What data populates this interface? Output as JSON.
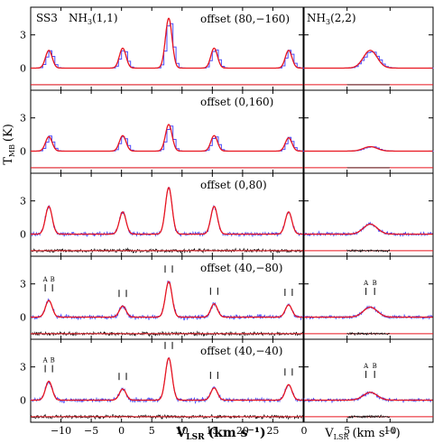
{
  "figure": {
    "source": "SS3",
    "left_transition": "NH",
    "left_transition_sub": "3",
    "left_transition_tail": "(1,1)",
    "right_transition": "NH",
    "right_transition_sub": "3",
    "right_transition_tail": "(2,2)",
    "ylabel": "T",
    "ylabel_sub": "MB",
    "ylabel_unit": "(K)",
    "xlabel_left": "V",
    "xlabel_left_sub": "LSR",
    "xlabel_left_unit": "(km s⁻¹)",
    "xlabel_right": "V",
    "xlabel_right_sub": "LSR",
    "xlabel_right_unit": "(km s⁻¹)",
    "colors": {
      "observed": "#4b4bff",
      "model": "#e8141e",
      "residual": "#000000",
      "frame": "#000000"
    }
  },
  "chart_data": {
    "type": "line",
    "panels": [
      {
        "offset_label": "offset (80,−160)",
        "noise": "smooth",
        "left_peaks": [
          1.6,
          1.8,
          4.5,
          1.8,
          1.6
        ],
        "right_peak": 1.6,
        "tick_marks": false
      },
      {
        "offset_label": "offset (0,160)",
        "noise": "smooth",
        "left_peaks": [
          1.3,
          1.4,
          2.4,
          1.4,
          1.2
        ],
        "right_peak": 0.4,
        "tick_marks": false
      },
      {
        "offset_label": "offset (0,80)",
        "noise": "noisy",
        "left_peaks": [
          2.5,
          2.0,
          4.2,
          2.5,
          2.0
        ],
        "right_peak": 0.9,
        "tick_marks": false
      },
      {
        "offset_label": "offset (40,−80)",
        "noise": "noisy",
        "left_peaks": [
          1.5,
          1.0,
          3.2,
          1.2,
          1.1
        ],
        "right_peak": 0.9,
        "tick_marks": true,
        "component_labels": [
          "A",
          "B"
        ]
      },
      {
        "offset_label": "offset (40,−40)",
        "noise": "noisy",
        "left_peaks": [
          1.7,
          1.0,
          3.8,
          1.1,
          1.4
        ],
        "right_peak": 0.7,
        "tick_marks": true,
        "component_labels": [
          "A",
          "B"
        ]
      }
    ],
    "left_x": {
      "range": [
        -15,
        30
      ],
      "ticks": [
        -10,
        -5,
        0,
        5,
        10,
        15,
        20,
        25
      ],
      "tick_labels": [
        "−10",
        "−5",
        "0",
        "5",
        "10",
        "15",
        "20",
        "25"
      ],
      "line_centers": [
        -12,
        0.2,
        7.8,
        15.3,
        27.6
      ]
    },
    "right_x": {
      "range": [
        0,
        15
      ],
      "ticks": [
        0,
        5,
        10
      ],
      "tick_labels": [
        "0",
        "5",
        "10"
      ],
      "line_center": 7.7
    },
    "y": {
      "range": [
        -2.0,
        5.5
      ],
      "ticks": [
        0,
        3
      ],
      "tick_labels": [
        "0",
        "3"
      ]
    }
  }
}
